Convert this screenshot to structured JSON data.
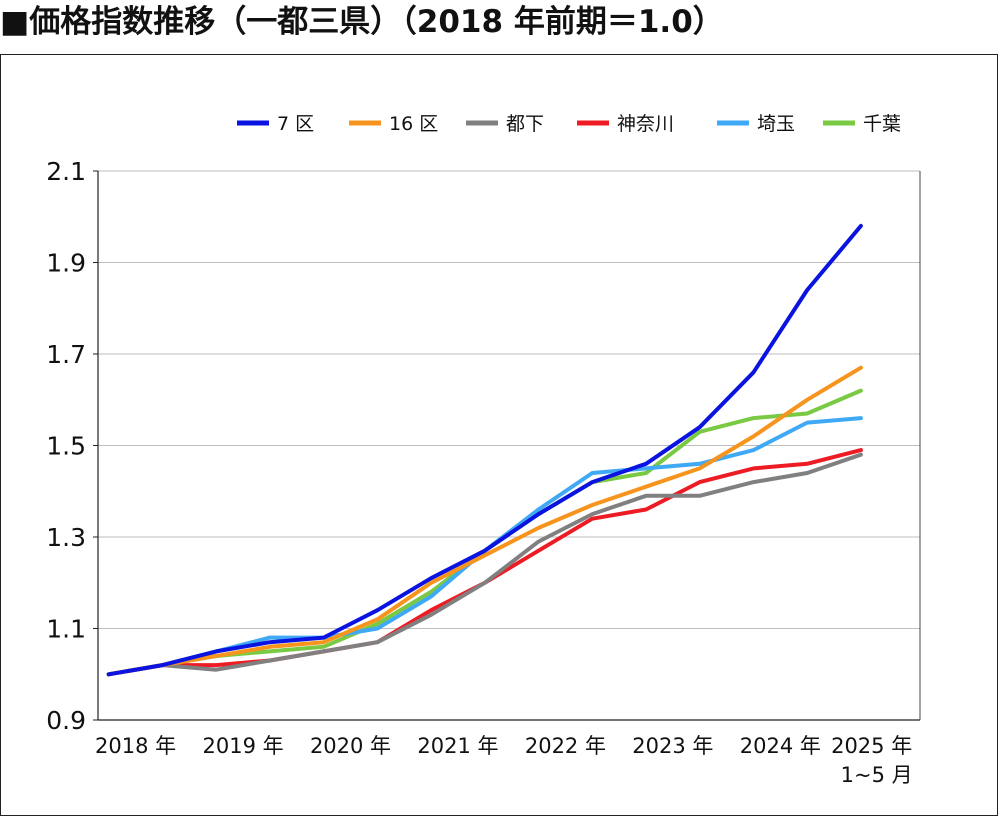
{
  "title": "■価格指数推移（一都三県）（2018 年前期＝1.0）",
  "chart_data": {
    "type": "line",
    "title": "■価格指数推移（一都三県）（2018 年前期＝1.0）",
    "xlabel": "",
    "ylabel": "",
    "x": [
      2018.0,
      2018.5,
      2019.0,
      2019.5,
      2020.0,
      2020.5,
      2021.0,
      2021.5,
      2022.0,
      2022.5,
      2023.0,
      2023.5,
      2024.0,
      2024.5,
      2025.0
    ],
    "ylim": [
      0.9,
      2.1
    ],
    "yticks": [
      "0.9",
      "1.1",
      "1.3",
      "1.5",
      "1.7",
      "1.9",
      "2.1"
    ],
    "xtick_labels": [
      {
        "line1": "2018 年",
        "line2": ""
      },
      {
        "line1": "2019 年",
        "line2": ""
      },
      {
        "line1": "2020 年",
        "line2": ""
      },
      {
        "line1": "2021 年",
        "line2": ""
      },
      {
        "line1": "2022 年",
        "line2": ""
      },
      {
        "line1": "2023 年",
        "line2": ""
      },
      {
        "line1": "2024 年",
        "line2": ""
      },
      {
        "line1": "2025 年",
        "line2": "1~5 月"
      }
    ],
    "grid": true,
    "legend_position": "top-right",
    "series": [
      {
        "name": "7 区",
        "color": "#0a13e0",
        "values": [
          1.0,
          1.02,
          1.05,
          1.07,
          1.08,
          1.14,
          1.21,
          1.27,
          1.35,
          1.42,
          1.46,
          1.54,
          1.66,
          1.84,
          1.98
        ]
      },
      {
        "name": "16 区",
        "color": "#f7941d",
        "values": [
          1.0,
          1.02,
          1.04,
          1.06,
          1.07,
          1.12,
          1.2,
          1.26,
          1.32,
          1.37,
          1.41,
          1.45,
          1.52,
          1.6,
          1.67
        ]
      },
      {
        "name": "都下",
        "color": "#808080",
        "values": [
          1.0,
          1.02,
          1.01,
          1.03,
          1.05,
          1.07,
          1.13,
          1.2,
          1.29,
          1.35,
          1.39,
          1.39,
          1.42,
          1.44,
          1.48
        ]
      },
      {
        "name": "神奈川",
        "color": "#ed1c24",
        "values": [
          1.0,
          1.02,
          1.02,
          1.03,
          1.05,
          1.07,
          1.14,
          1.2,
          1.27,
          1.34,
          1.36,
          1.42,
          1.45,
          1.46,
          1.49
        ]
      },
      {
        "name": "埼玉",
        "color": "#3fa9f5",
        "values": [
          1.0,
          1.02,
          1.05,
          1.08,
          1.08,
          1.1,
          1.17,
          1.27,
          1.36,
          1.44,
          1.45,
          1.46,
          1.49,
          1.55,
          1.56
        ]
      },
      {
        "name": "千葉",
        "color": "#7ac943",
        "values": [
          1.0,
          1.02,
          1.04,
          1.05,
          1.06,
          1.11,
          1.18,
          1.27,
          1.35,
          1.42,
          1.44,
          1.53,
          1.56,
          1.57,
          1.62
        ]
      }
    ]
  }
}
